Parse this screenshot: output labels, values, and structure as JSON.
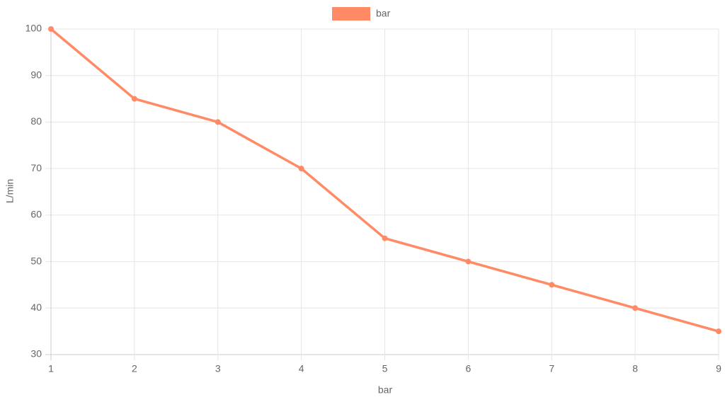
{
  "chart_data": {
    "type": "line",
    "x": [
      1,
      2,
      3,
      4,
      5,
      6,
      7,
      8,
      9
    ],
    "series": [
      {
        "name": "bar",
        "color": "#ff8a65",
        "values": [
          100,
          85,
          80,
          70,
          55,
          50,
          45,
          40,
          35
        ]
      }
    ],
    "xlim": [
      1,
      9
    ],
    "xticks": [
      1,
      2,
      3,
      4,
      5,
      6,
      7,
      8,
      9
    ],
    "ylim": [
      30,
      100
    ],
    "yticks": [
      30,
      40,
      50,
      60,
      70,
      80,
      90,
      100
    ],
    "x_label": "bar",
    "y_label": "L/min",
    "grid": true,
    "legend": "top"
  }
}
